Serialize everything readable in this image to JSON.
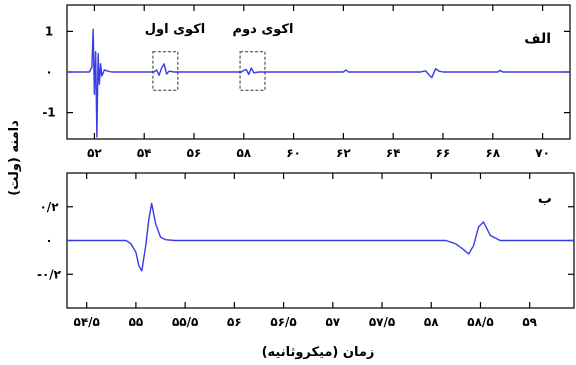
{
  "chart_data": [
    {
      "type": "line",
      "panel": "الف",
      "xlim": [
        50.9,
        71.1
      ],
      "ylim": [
        -1.65,
        1.65
      ],
      "x_ticks": [
        52,
        54,
        56,
        58,
        60,
        62,
        64,
        66,
        68,
        70
      ],
      "x_tick_labels": [
        "۵۲",
        "۵۴",
        "۵۶",
        "۵۸",
        "۶۰",
        "۶۲",
        "۶۴",
        "۶۶",
        "۶۸",
        "۷۰"
      ],
      "y_ticks": [
        1,
        0,
        -1
      ],
      "y_tick_labels": [
        "1",
        "۰",
        "-1"
      ],
      "series": [
        {
          "color": "#3a3ae6",
          "x": [
            50.9,
            51.8,
            51.9,
            51.95,
            52.0,
            52.05,
            52.1,
            52.15,
            52.2,
            52.25,
            52.3,
            52.4,
            52.55,
            52.7,
            54.4,
            54.5,
            54.6,
            54.7,
            54.8,
            54.9,
            55.0,
            55.2,
            57.9,
            58.0,
            58.1,
            58.2,
            58.3,
            58.4,
            58.6,
            62.0,
            62.1,
            62.2,
            65.1,
            65.3,
            65.45,
            65.55,
            65.7,
            65.85,
            66.0,
            68.2,
            68.3,
            68.4,
            71.1
          ],
          "y": [
            0,
            0,
            0.12,
            1.05,
            -0.55,
            0.5,
            -1.6,
            0.45,
            -0.3,
            0.2,
            -0.1,
            0.05,
            0.02,
            0,
            0,
            0.05,
            -0.08,
            0.1,
            0.2,
            -0.05,
            0.02,
            0,
            0,
            0.04,
            0.06,
            -0.06,
            0.1,
            -0.02,
            0,
            0,
            0.05,
            0,
            0,
            0.03,
            -0.08,
            -0.14,
            0.08,
            0.02,
            0,
            0,
            0.04,
            0,
            0
          ]
        }
      ],
      "annotations": [
        "اکوی اول",
        "اکوی دوم"
      ],
      "annotation_boxes": [
        [
          54.35,
          55.35,
          -0.45,
          0.5
        ],
        [
          57.85,
          58.85,
          -0.45,
          0.5
        ]
      ]
    },
    {
      "type": "line",
      "panel": "ب",
      "xlim": [
        54.3,
        59.45
      ],
      "ylim": [
        -0.4,
        0.4
      ],
      "x_ticks": [
        54.5,
        55,
        55.5,
        56,
        56.5,
        57,
        57.5,
        58,
        58.5,
        59
      ],
      "x_tick_labels": [
        "۵۴/۵",
        "۵۵",
        "۵۵/۵",
        "۵۶",
        "۵۶/۵",
        "۵۷",
        "۵۷/۵",
        "۵۸",
        "۵۸/۵",
        "۵۹"
      ],
      "y_ticks": [
        0.2,
        0,
        -0.2
      ],
      "y_tick_labels": [
        "۰/۲",
        "۰",
        "-۰/۲"
      ],
      "xlabel": "زمان (میکروثانیه)",
      "series": [
        {
          "color": "#3a3ae6",
          "x": [
            54.3,
            54.9,
            54.95,
            55.0,
            55.03,
            55.06,
            55.1,
            55.13,
            55.16,
            55.2,
            55.25,
            55.3,
            55.4,
            58.15,
            58.25,
            58.32,
            58.38,
            58.43,
            58.48,
            58.53,
            58.6,
            58.7,
            59.45
          ],
          "y": [
            0,
            0,
            -0.02,
            -0.07,
            -0.15,
            -0.18,
            -0.03,
            0.12,
            0.22,
            0.1,
            0.02,
            0.005,
            0,
            0,
            -0.02,
            -0.05,
            -0.08,
            -0.03,
            0.08,
            0.11,
            0.03,
            0,
            0
          ]
        }
      ]
    }
  ],
  "shared_ylabel": "دامنه (ولت)"
}
